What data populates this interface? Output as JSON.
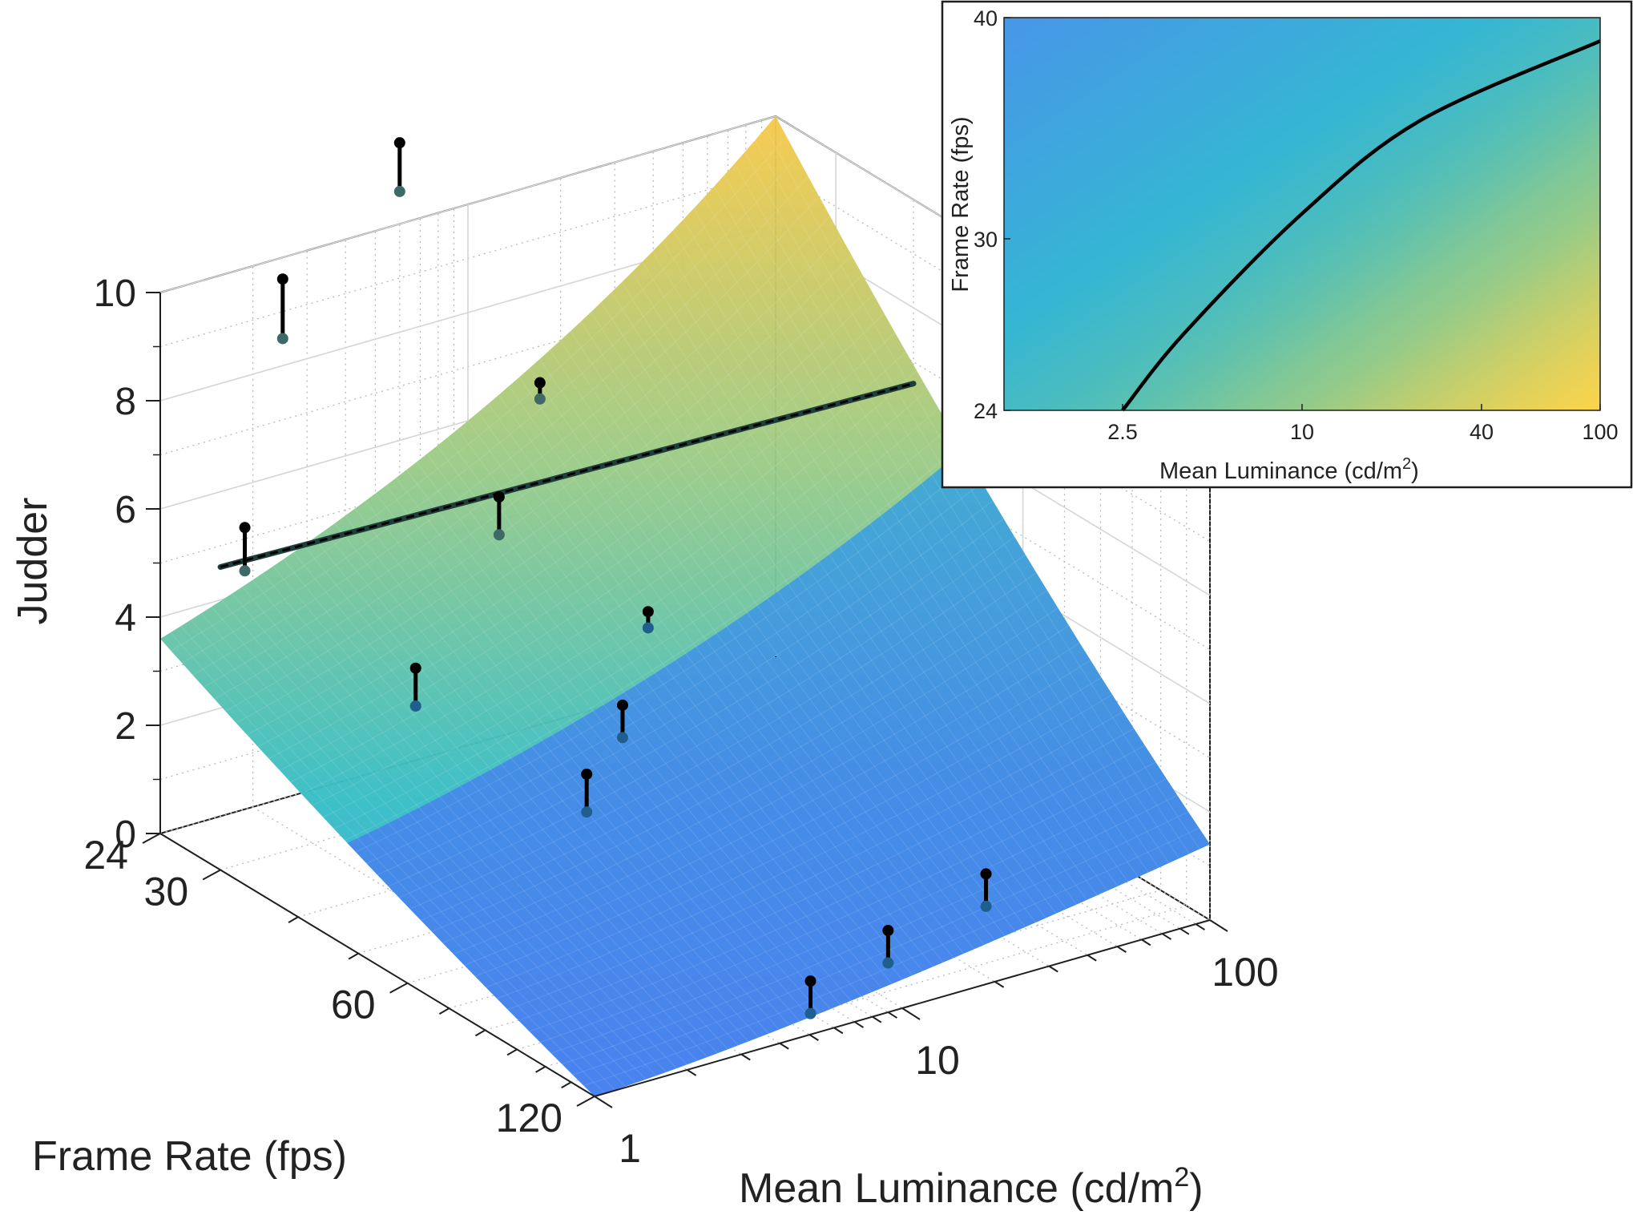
{
  "chart_data": [
    {
      "type": "surface",
      "zlabel": "Judder",
      "xlabel": "Mean Luminance (cd/m",
      "xlabel_superscript": "2",
      "xlabel_suffix": ")",
      "ylabel": "Frame Rate (fps)",
      "x_scale": "log",
      "y_scale": "log",
      "x_ticks": [
        "1",
        "10",
        "100"
      ],
      "y_ticks": [
        "24",
        "30",
        "60",
        "120"
      ],
      "z_ticks": [
        "0",
        "2",
        "4",
        "6",
        "8",
        "10"
      ],
      "xlim": [
        1,
        100
      ],
      "ylim": [
        24,
        120
      ],
      "zlim": [
        0,
        10
      ],
      "grid": true,
      "colormap": "parula",
      "surface_corners": [
        {
          "luminance": 1,
          "frame_rate": 24,
          "judder": 3.6
        },
        {
          "luminance": 100,
          "frame_rate": 24,
          "judder": 10.0
        },
        {
          "luminance": 1,
          "frame_rate": 120,
          "judder": 0.0
        },
        {
          "luminance": 100,
          "frame_rate": 120,
          "judder": 1.4
        }
      ],
      "contour_line": {
        "judder": 5.6,
        "from": {
          "luminance": 1.0,
          "frame_rate": 30
        },
        "to": {
          "luminance": 100,
          "frame_rate": 40
        }
      },
      "points": [
        {
          "luminance": 1.2,
          "frame_rate": 30,
          "measured": 6.2,
          "fitted": 5.4
        },
        {
          "luminance": 1.9,
          "frame_rate": 45,
          "measured": 4.5,
          "fitted": 3.8
        },
        {
          "luminance": 2.5,
          "frame_rate": 24,
          "measured": 9.6,
          "fitted": 8.5
        },
        {
          "luminance": 6.0,
          "frame_rate": 24,
          "measured": 11.5,
          "fitted": 10.6
        },
        {
          "luminance": 4.5,
          "frame_rate": 40,
          "measured": 6.7,
          "fitted": 6.0
        },
        {
          "luminance": 8.0,
          "frame_rate": 35,
          "measured": 8.0,
          "fitted": 7.7
        },
        {
          "luminance": 2.8,
          "frame_rate": 70,
          "measured": 3.6,
          "fitted": 2.9
        },
        {
          "luminance": 5.0,
          "frame_rate": 60,
          "measured": 4.0,
          "fitted": 3.4
        },
        {
          "luminance": 9.5,
          "frame_rate": 48,
          "measured": 4.6,
          "fitted": 4.3
        },
        {
          "luminance": 6.0,
          "frame_rate": 110,
          "measured": 0.6,
          "fitted": 0.0
        },
        {
          "luminance": 13.0,
          "frame_rate": 100,
          "measured": 0.7,
          "fitted": 0.1
        },
        {
          "luminance": 30.0,
          "frame_rate": 95,
          "measured": 1.0,
          "fitted": 0.4
        }
      ]
    },
    {
      "type": "heatmap",
      "xlabel": "Mean Luminance (cd/m",
      "xlabel_superscript": "2",
      "xlabel_suffix": ")",
      "ylabel": "Frame Rate (fps)",
      "x_scale": "log",
      "y_scale": "log",
      "x_ticks": [
        "2.5",
        "10",
        "40",
        "100"
      ],
      "y_ticks": [
        "24",
        "30",
        "40"
      ],
      "xlim": [
        1,
        100
      ],
      "ylim": [
        24,
        40
      ],
      "colormap": "parula",
      "contour_line": [
        {
          "luminance": 2.5,
          "frame_rate": 24
        },
        {
          "luminance": 4.0,
          "frame_rate": 26.5
        },
        {
          "luminance": 10,
          "frame_rate": 31
        },
        {
          "luminance": 25,
          "frame_rate": 35
        },
        {
          "luminance": 100,
          "frame_rate": 38.8
        }
      ]
    }
  ]
}
